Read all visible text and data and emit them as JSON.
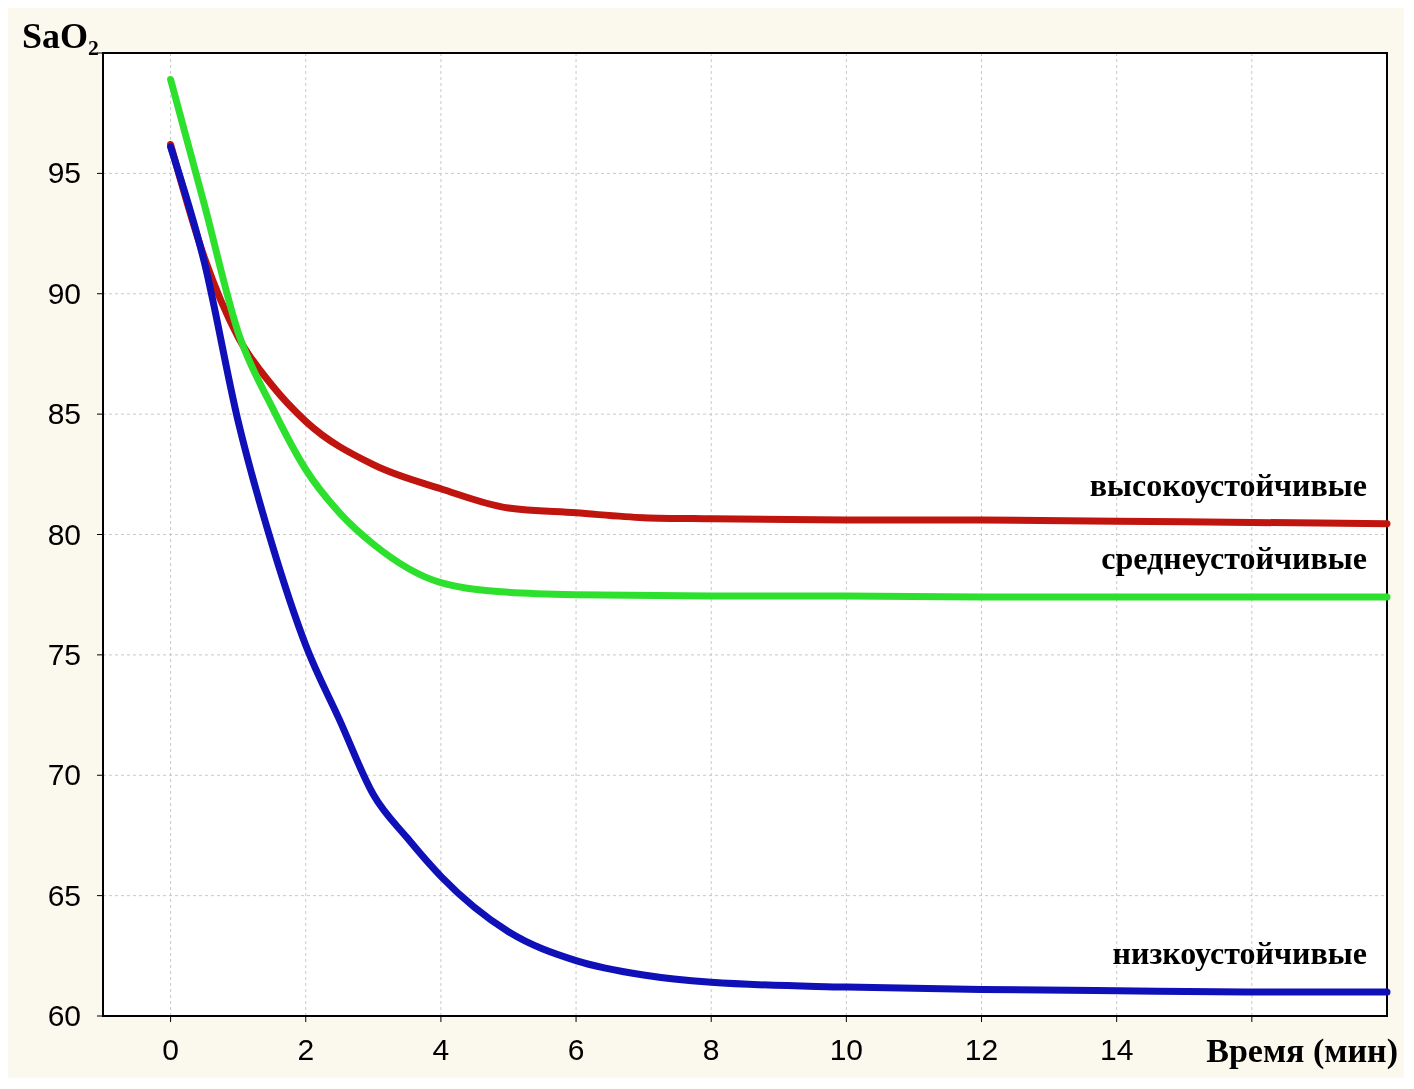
{
  "chart_data": {
    "type": "line",
    "xlabel": "Время (мин)",
    "ylabel": "SaO₂",
    "xlim": [
      -1,
      18
    ],
    "ylim": [
      60,
      100
    ],
    "xticks": [
      0,
      2,
      4,
      6,
      8,
      10,
      12,
      14,
      {
        "value": 16,
        "label": null
      }
    ],
    "yticks": [
      60,
      65,
      70,
      75,
      80,
      85,
      90,
      95,
      {
        "value": 100,
        "label": null
      }
    ],
    "grid": true,
    "line_style": "solid",
    "marker": "none",
    "series": [
      {
        "name": "высокоустойчивые",
        "color": "#c0140f",
        "x": [
          0,
          0.5,
          1,
          1.5,
          2,
          3,
          4,
          5,
          6,
          7,
          8,
          10,
          12,
          14,
          16,
          18
        ],
        "values": [
          96.2,
          91.5,
          88.2,
          86.2,
          84.7,
          82.9,
          81.9,
          81.1,
          80.9,
          80.7,
          80.65,
          80.6,
          80.6,
          80.55,
          80.5,
          80.45
        ]
      },
      {
        "name": "среднеустойчивые",
        "color": "#2ee02e",
        "x": [
          0,
          0.5,
          1,
          1.5,
          2,
          2.5,
          3,
          4,
          5,
          6,
          8,
          10,
          12,
          14,
          16,
          18
        ],
        "values": [
          98.9,
          93.7,
          88.4,
          85.3,
          82.7,
          80.9,
          79.6,
          78.0,
          77.6,
          77.5,
          77.45,
          77.45,
          77.4,
          77.4,
          77.4,
          77.4
        ]
      },
      {
        "name": "низкоустойчивые",
        "color": "#1010b8",
        "x": [
          0,
          0.5,
          1,
          1.5,
          2,
          2.5,
          3,
          3.5,
          4,
          5,
          6,
          7,
          8,
          10,
          12,
          14,
          16,
          18
        ],
        "values": [
          96.1,
          91.3,
          84.7,
          79.6,
          75.4,
          72.3,
          69.2,
          67.4,
          65.8,
          63.5,
          62.3,
          61.7,
          61.4,
          61.2,
          61.1,
          61.05,
          61.0,
          61.0
        ]
      }
    ]
  }
}
